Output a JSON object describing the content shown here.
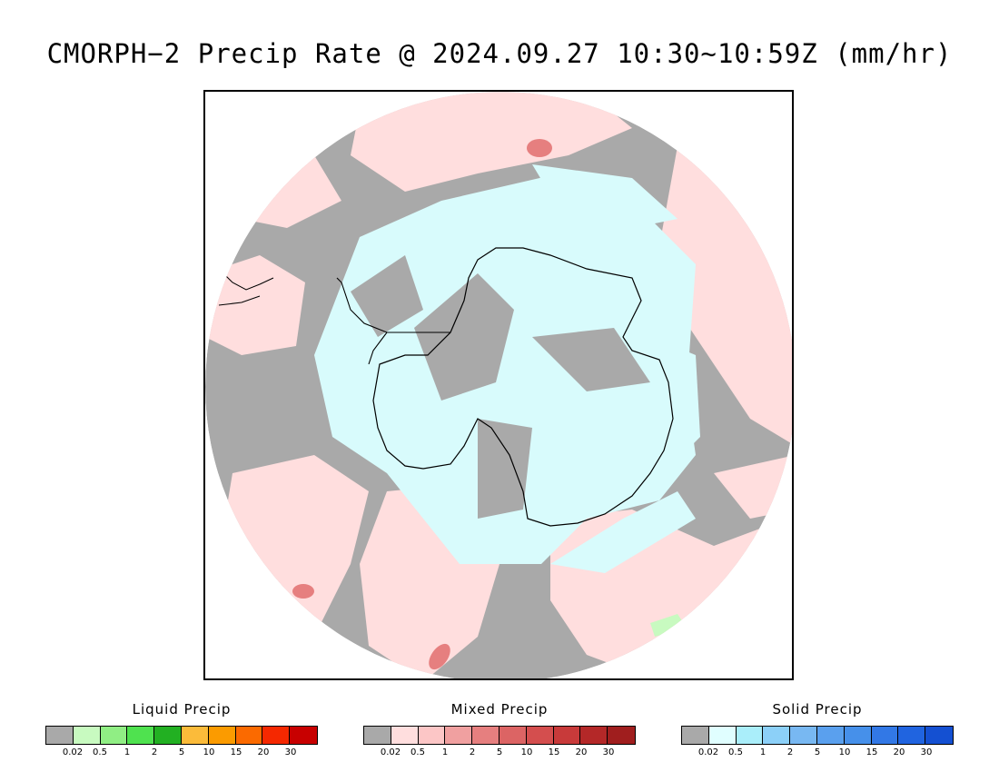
{
  "title": "CMORPH−2 Precip Rate @ 2024.09.27 10:30∼10:59Z (mm/hr)",
  "map": {
    "projection": "south-polar-stereographic",
    "colors": {
      "no_precip": "#a9a9a9",
      "mixed_light": "#ffdede",
      "solid_light": "#d8fbfc",
      "coastline": "#000000",
      "frame": "#000000"
    }
  },
  "legends": [
    {
      "title": "Liquid Precip",
      "colors": [
        "#a9a9a9",
        "#c8fac0",
        "#90ee84",
        "#4fe24f",
        "#22b022",
        "#fbbb3a",
        "#fb9b00",
        "#fb6a00",
        "#f52800",
        "#c80000"
      ],
      "ticks": [
        "0.02",
        "0.5",
        "1",
        "2",
        "5",
        "10",
        "15",
        "20",
        "30"
      ]
    },
    {
      "title": "Mixed Precip",
      "colors": [
        "#a9a9a9",
        "#ffdede",
        "#fcc6c6",
        "#f0a0a0",
        "#e67f7f",
        "#dc6464",
        "#d44e4e",
        "#c83a3a",
        "#b42828",
        "#a01e1e"
      ],
      "ticks": [
        "0.02",
        "0.5",
        "1",
        "2",
        "5",
        "10",
        "15",
        "20",
        "30"
      ]
    },
    {
      "title": "Solid Precip",
      "colors": [
        "#a9a9a9",
        "#e0feff",
        "#aaeefa",
        "#8cd0f8",
        "#78b8f2",
        "#5aa0ee",
        "#4690ea",
        "#3278e6",
        "#2064e0",
        "#1450d2"
      ],
      "ticks": [
        "0.02",
        "0.5",
        "1",
        "2",
        "5",
        "10",
        "15",
        "20",
        "30"
      ]
    }
  ]
}
